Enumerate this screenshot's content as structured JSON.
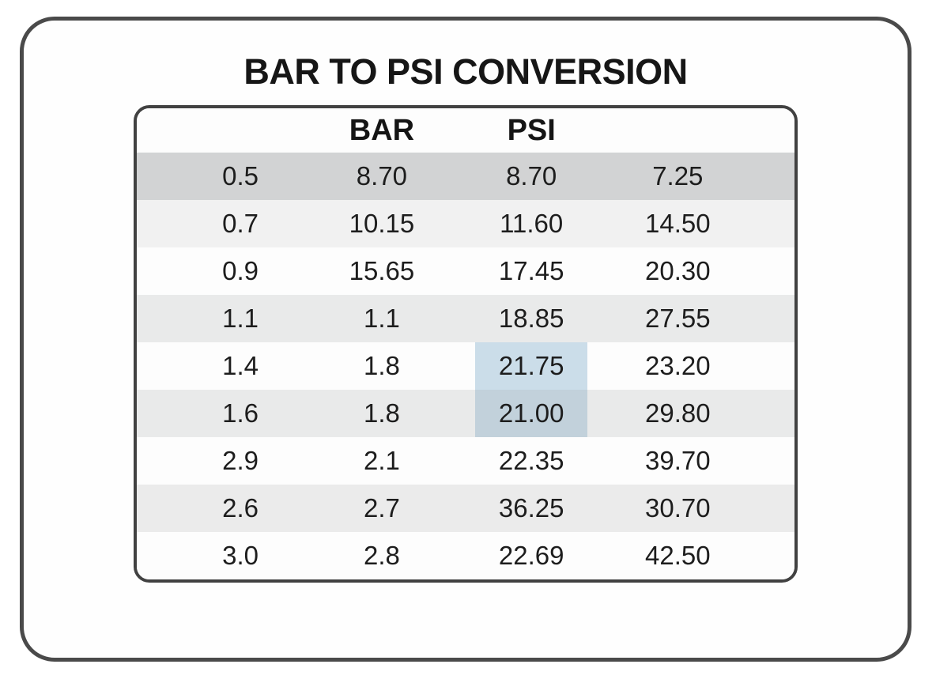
{
  "title": "BAR TO PSI CONVERSION",
  "chart_data": {
    "type": "table",
    "title": "BAR TO PSI CONVERSION",
    "columns": [
      "",
      "BAR",
      "PSI",
      ""
    ],
    "rows": [
      [
        "0.5",
        "8.70",
        "8.70",
        "7.25"
      ],
      [
        "0.7",
        "10.15",
        "11.60",
        "14.50"
      ],
      [
        "0.9",
        "15.65",
        "17.45",
        "20.30"
      ],
      [
        "1.1",
        "1.1",
        "18.85",
        "27.55"
      ],
      [
        "1.4",
        "1.8",
        "21.75",
        "23.20"
      ],
      [
        "1.6",
        "1.8",
        "21.00",
        "29.80"
      ],
      [
        "2.9",
        "2.1",
        "22.35",
        "39.70"
      ],
      [
        "2.6",
        "2.7",
        "36.25",
        "30.70"
      ],
      [
        "3.0",
        "2.8",
        "22.69",
        "42.50"
      ]
    ],
    "row_backgrounds": [
      "#d2d3d4",
      "#f1f1f1",
      "#fdfdfd",
      "#e9eaea",
      "#fdfdfd",
      "#e9eaea",
      "#fdfdfd",
      "#ebebeb",
      "#fdfdfd"
    ],
    "highlighted_cells": [
      {
        "row": 4,
        "col": 2,
        "value": "21.75",
        "color": "#cbdde9"
      },
      {
        "row": 5,
        "col": 2,
        "value": "21.00",
        "color": "#c2d1db"
      }
    ],
    "legend_position": "none",
    "grid": false
  },
  "colors": {
    "frame_border": "#4a4a4a",
    "table_border": "#414141",
    "title_text": "#161616",
    "cell_text": "#1d1d1d",
    "highlight_blue": "#cbdde9",
    "highlight_blue_gray": "#c2d1db",
    "first_row_gray": "#d2d3d4",
    "alt_row_gray": "#e9eaea"
  }
}
